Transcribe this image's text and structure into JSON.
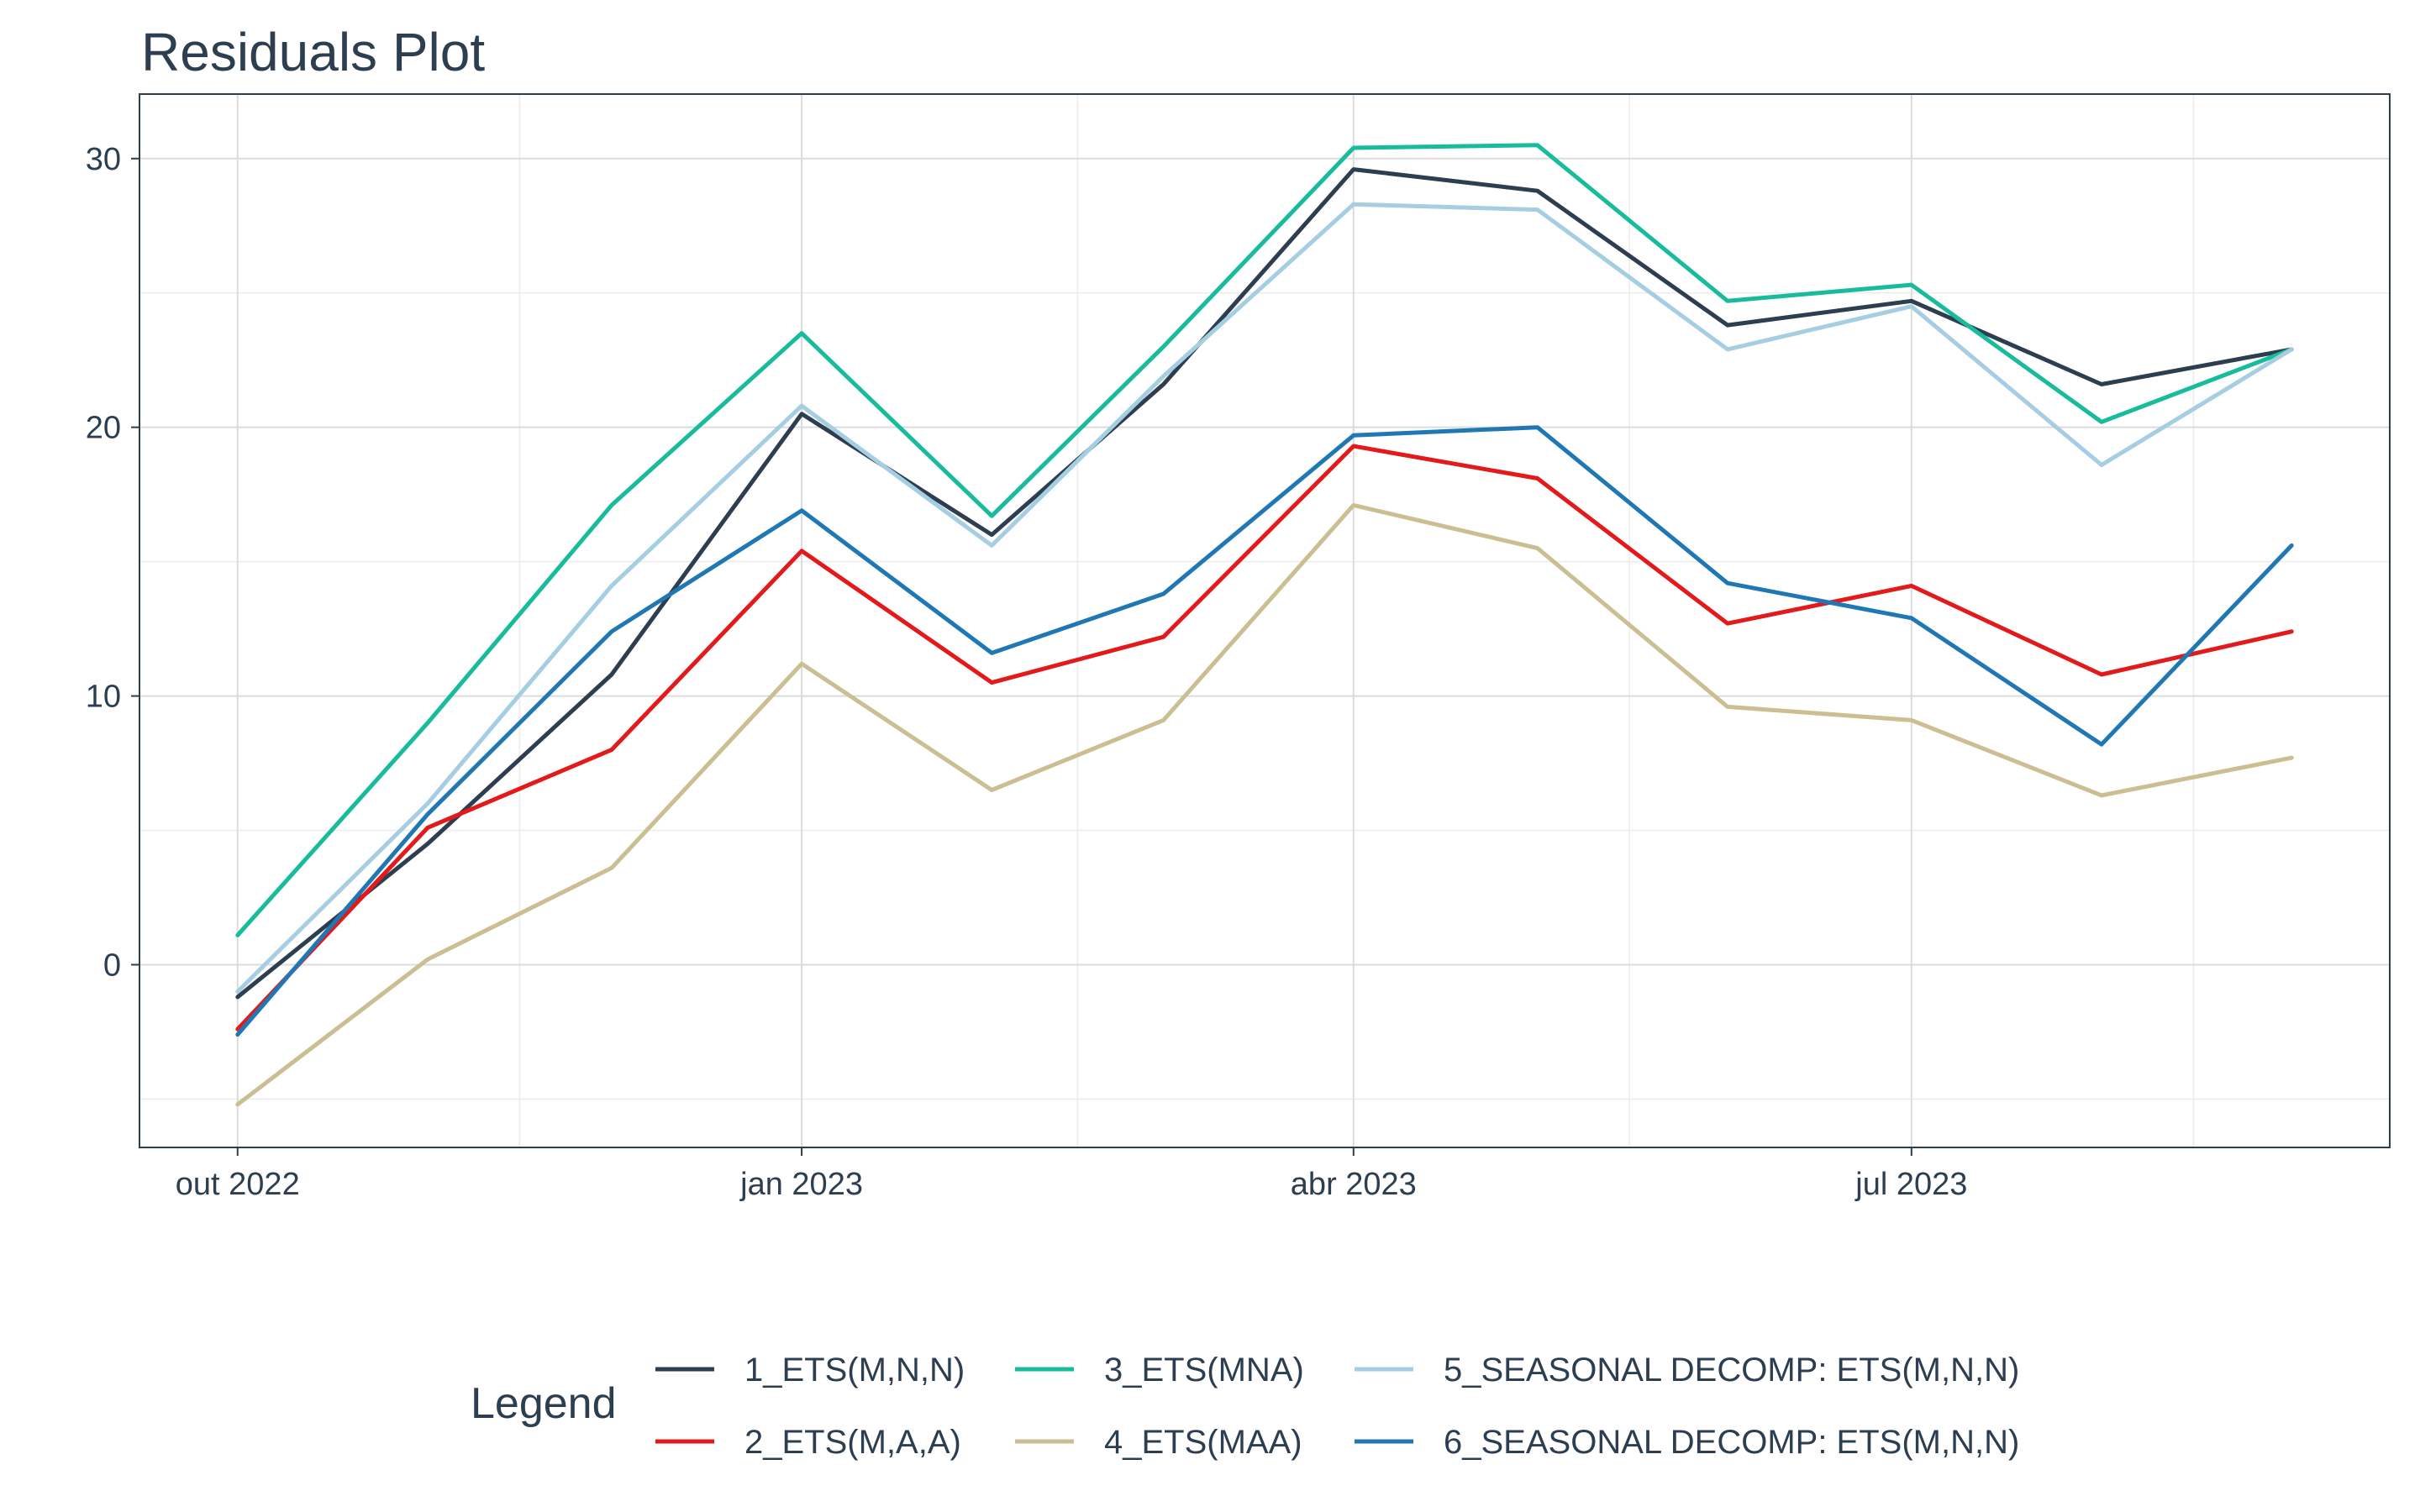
{
  "chart_data": {
    "type": "line",
    "title": "Residuals Plot",
    "xlabel": "",
    "ylabel": "",
    "x": [
      "2022-10-01",
      "2022-11-01",
      "2022-12-01",
      "2023-01-01",
      "2023-02-01",
      "2023-03-01",
      "2023-04-01",
      "2023-05-01",
      "2023-06-01",
      "2023-07-01",
      "2023-08-01",
      "2023-09-01"
    ],
    "x_ticks": [
      {
        "date": "2022-10-01",
        "label": "out 2022"
      },
      {
        "date": "2023-01-01",
        "label": "jan 2023"
      },
      {
        "date": "2023-04-01",
        "label": "abr 2023"
      },
      {
        "date": "2023-07-01",
        "label": "jul 2023"
      }
    ],
    "y_ticks": [
      0,
      10,
      20,
      30
    ],
    "ylim": [
      -6.8,
      32.4
    ],
    "grid": true,
    "legend_title": "Legend",
    "legend_position": "bottom",
    "series": [
      {
        "name": "1_ETS(M,N,N)",
        "color": "#2c3e50",
        "values": [
          -1.2,
          4.5,
          10.8,
          20.5,
          16.0,
          21.6,
          29.6,
          28.8,
          23.8,
          24.7,
          21.6,
          22.9
        ]
      },
      {
        "name": "2_ETS(M,A,A)",
        "color": "#e31a1c",
        "values": [
          -2.4,
          5.1,
          8.0,
          15.4,
          10.5,
          12.2,
          19.3,
          18.1,
          12.7,
          14.1,
          10.8,
          12.4
        ]
      },
      {
        "name": "3_ETS(MNA)",
        "color": "#18bc9c",
        "values": [
          1.1,
          9.0,
          17.1,
          23.5,
          16.7,
          23.0,
          30.4,
          30.5,
          24.7,
          25.3,
          20.2,
          22.9
        ]
      },
      {
        "name": "4_ETS(MAA)",
        "color": "#ccbe93",
        "values": [
          -5.2,
          0.2,
          3.6,
          11.2,
          6.5,
          9.1,
          17.1,
          15.5,
          9.6,
          9.1,
          6.3,
          7.7
        ]
      },
      {
        "name": "5_SEASONAL DECOMP: ETS(M,N,N)",
        "color": "#a6cee3",
        "values": [
          -1.0,
          6.0,
          14.1,
          20.8,
          15.6,
          21.9,
          28.3,
          28.1,
          22.9,
          24.5,
          18.6,
          22.9
        ]
      },
      {
        "name": "6_SEASONAL DECOMP: ETS(M,N,N)",
        "color": "#1f78b4",
        "values": [
          -2.6,
          5.6,
          12.4,
          16.9,
          11.6,
          13.8,
          19.7,
          20.0,
          14.2,
          12.9,
          8.2,
          15.6
        ]
      }
    ]
  }
}
